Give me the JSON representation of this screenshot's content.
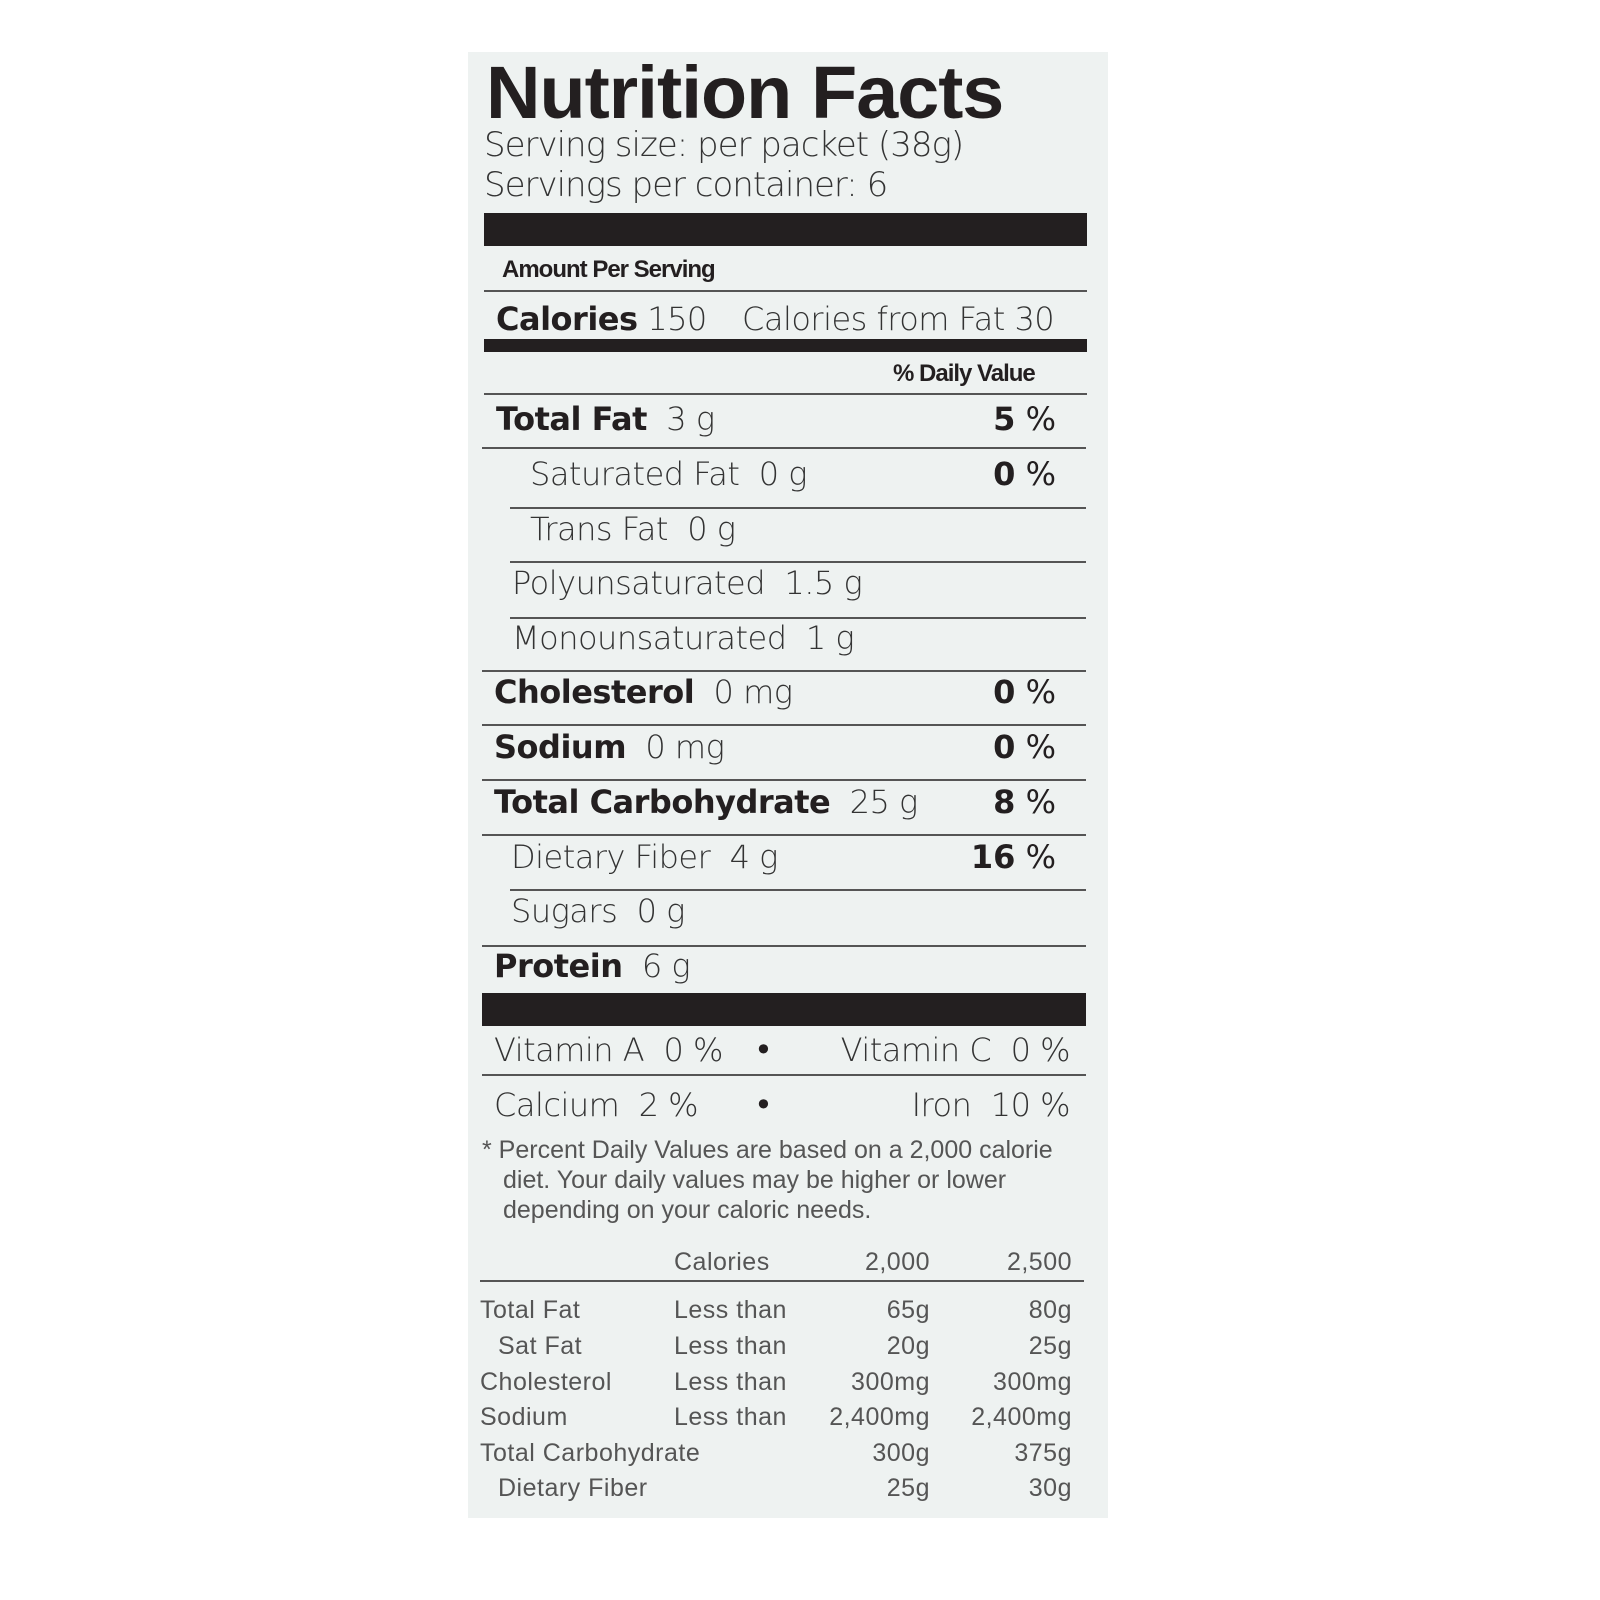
{
  "title": "Nutrition Facts",
  "serving_size": "Serving size: per packet (38g)",
  "servings_per_container": "Servings per container: 6",
  "amount_per_serving": "Amount Per Serving",
  "calories": {
    "label": "Calories",
    "value": "150",
    "from_fat_label": "Calories from Fat",
    "from_fat_value": "30"
  },
  "daily_value_header": "% Daily Value",
  "nutrients": [
    {
      "label": "Total Fat",
      "amount": "3 g",
      "dv": "5",
      "unit": "%"
    },
    {
      "label": "Saturated Fat",
      "amount": "0 g",
      "dv": "0",
      "unit": "%"
    },
    {
      "label": "Trans Fat",
      "amount": "0 g"
    },
    {
      "label": "Polyunsaturated",
      "amount": "1.5 g"
    },
    {
      "label": "Monounsaturated",
      "amount": "1 g"
    },
    {
      "label": "Cholesterol",
      "amount": "0 mg",
      "dv": "0",
      "unit": "%"
    },
    {
      "label": "Sodium",
      "amount": "0 mg",
      "dv": "0",
      "unit": "%"
    },
    {
      "label": "Total Carbohydrate",
      "amount": "25 g",
      "dv": "8",
      "unit": "%"
    },
    {
      "label": "Dietary Fiber",
      "amount": "4 g",
      "dv": "16",
      "unit": "%"
    },
    {
      "label": "Sugars",
      "amount": "0 g"
    },
    {
      "label": "Protein",
      "amount": "6 g"
    }
  ],
  "vitamins": [
    {
      "label": "Vitamin A",
      "value": "0 %"
    },
    {
      "label": "Vitamin C",
      "value": "0 %"
    },
    {
      "label": "Calcium",
      "value": "2 %"
    },
    {
      "label": "Iron",
      "value": "10 %"
    }
  ],
  "bullet": "•",
  "footnote": [
    "* Percent Daily Values are based on a 2,000 calorie",
    "diet. Your daily values may be higher or lower",
    "depending on your caloric needs."
  ],
  "reference_table": {
    "header": [
      "Calories",
      "2,000",
      "2,500"
    ],
    "rows": [
      [
        "Total Fat",
        "Less than",
        "65g",
        "80g"
      ],
      [
        "Sat Fat",
        "Less than",
        "20g",
        "25g"
      ],
      [
        "Cholesterol",
        "Less than",
        "300mg",
        "300mg"
      ],
      [
        "Sodium",
        "Less than",
        "2,400mg",
        "2,400mg"
      ],
      [
        "Total Carbohydrate",
        "",
        "300g",
        "375g"
      ],
      [
        "Dietary Fiber",
        "",
        "25g",
        "30g"
      ]
    ]
  },
  "colors": {
    "background": "#eef2f1",
    "ink": "#231f20"
  }
}
